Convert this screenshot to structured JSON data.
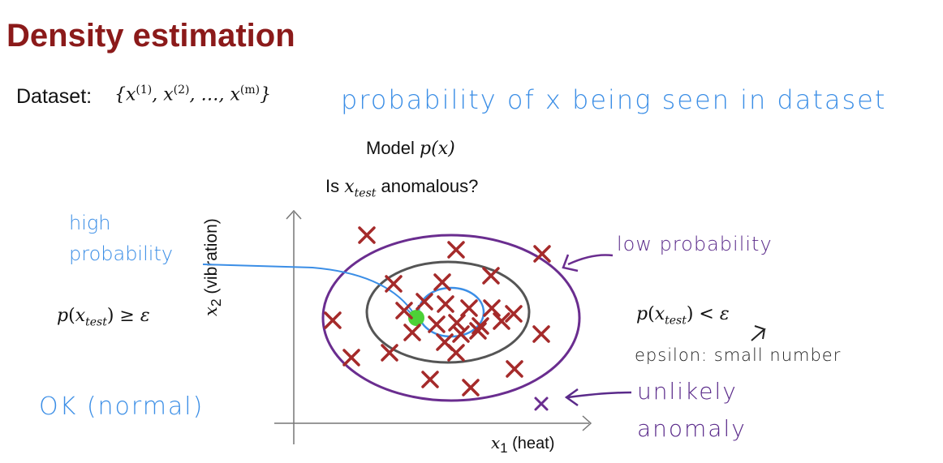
{
  "title": "Density estimation",
  "dataset": {
    "label": "Dataset:",
    "set_text": "{x(1), x(2), ..., x(m)}"
  },
  "model": "Model p(x)",
  "question": "Is x_test anomalous?",
  "notes": {
    "probability": "probability of x being seen in dataset",
    "high_probability_line1": "high",
    "high_probability_line2": "probability",
    "low_probability": "low probability",
    "ok_normal": "OK (normal)",
    "epsilon": "epsilon: small number",
    "unlikely": "unlikely",
    "anomaly": "anomaly"
  },
  "formulas": {
    "left": "p(x_test) ≥ ε",
    "right": "p(x_test) < ε"
  },
  "axes": {
    "x_label": "x1 (heat)",
    "y_label": "x2 (vibration)"
  },
  "colors": {
    "title": "#8B1A1A",
    "marker": "#A52A2A",
    "outer_ellipse": "#6A2D8F",
    "inner_ellipse": "#555555",
    "annotation_blue": "#3B8EE6",
    "test_point": "#4CD137"
  }
}
